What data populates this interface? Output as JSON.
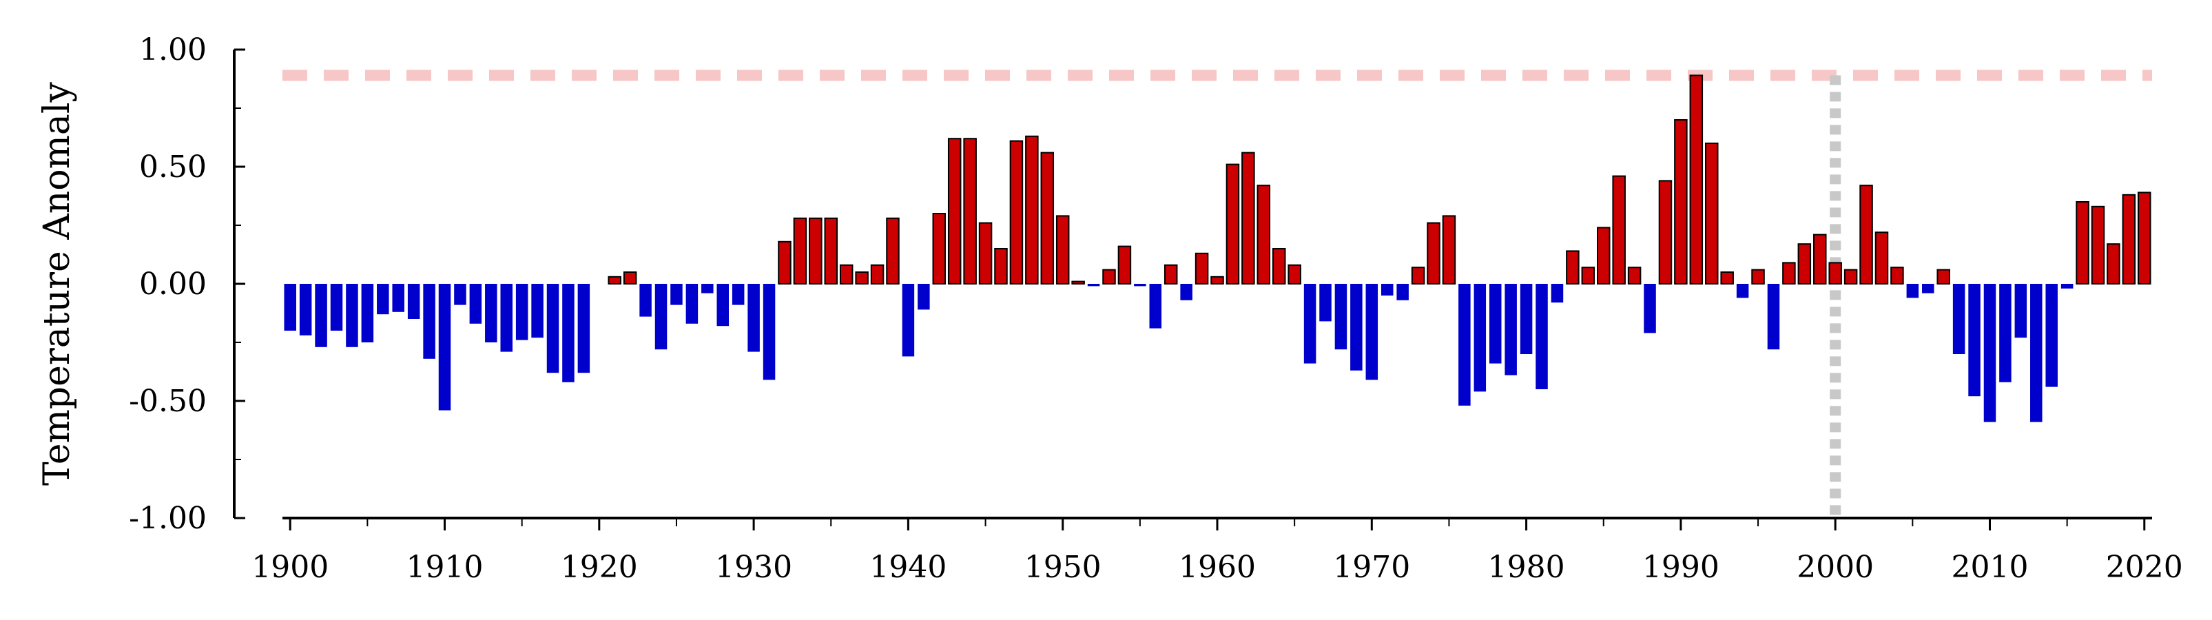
{
  "chart_data": {
    "type": "bar",
    "title": "",
    "xlabel": "",
    "ylabel": "Temperature Anomaly",
    "x_ticks": [
      1900,
      1910,
      1920,
      1930,
      1940,
      1950,
      1960,
      1970,
      1980,
      1990,
      2000,
      2010,
      2020
    ],
    "y_ticks": [
      "1.00",
      "0.50",
      "0.00",
      "-0.50",
      "-1.00"
    ],
    "xlim": [
      1899.5,
      2020.5
    ],
    "ylim": [
      -1.0,
      1.0
    ],
    "grid": false,
    "legend": "none",
    "colors": {
      "positive": "#cc0000",
      "negative": "#0000cc",
      "reference_line": "#f7c6c6",
      "marker_line": "#c8c8c8"
    },
    "reference_line_y": 0.89,
    "marker_line_x": 2000,
    "years": [
      1900,
      1901,
      1902,
      1903,
      1904,
      1905,
      1906,
      1907,
      1908,
      1909,
      1910,
      1911,
      1912,
      1913,
      1914,
      1915,
      1916,
      1917,
      1918,
      1919,
      1920,
      1921,
      1922,
      1923,
      1924,
      1925,
      1926,
      1927,
      1928,
      1929,
      1930,
      1931,
      1932,
      1933,
      1934,
      1935,
      1936,
      1937,
      1938,
      1939,
      1940,
      1941,
      1942,
      1943,
      1944,
      1945,
      1946,
      1947,
      1948,
      1949,
      1950,
      1951,
      1952,
      1953,
      1954,
      1955,
      1956,
      1957,
      1958,
      1959,
      1960,
      1961,
      1962,
      1963,
      1964,
      1965,
      1966,
      1967,
      1968,
      1969,
      1970,
      1971,
      1972,
      1973,
      1974,
      1975,
      1976,
      1977,
      1978,
      1979,
      1980,
      1981,
      1982,
      1983,
      1984,
      1985,
      1986,
      1987,
      1988,
      1989,
      1990,
      1991,
      1992,
      1993,
      1994,
      1995,
      1996,
      1997,
      1998,
      1999,
      2000,
      2001,
      2002,
      2003,
      2004,
      2005,
      2006,
      2007,
      2008,
      2009,
      2010,
      2011,
      2012,
      2013,
      2014,
      2015,
      2016,
      2017,
      2018,
      2019,
      2020
    ],
    "values": [
      -0.2,
      -0.22,
      -0.27,
      -0.2,
      -0.27,
      -0.25,
      -0.13,
      -0.12,
      -0.15,
      -0.32,
      -0.54,
      -0.09,
      -0.17,
      -0.25,
      -0.29,
      -0.24,
      -0.23,
      -0.38,
      -0.42,
      -0.38,
      0.0,
      0.03,
      0.05,
      -0.14,
      -0.28,
      -0.09,
      -0.17,
      -0.04,
      -0.18,
      -0.09,
      -0.29,
      -0.41,
      0.18,
      0.28,
      0.28,
      0.28,
      0.08,
      0.05,
      0.08,
      0.28,
      -0.31,
      -0.11,
      0.3,
      0.62,
      0.62,
      0.26,
      0.15,
      0.61,
      0.63,
      0.56,
      0.29,
      0.01,
      -0.01,
      0.06,
      0.16,
      -0.01,
      -0.19,
      0.08,
      -0.07,
      0.13,
      0.03,
      0.51,
      0.56,
      0.42,
      0.15,
      0.08,
      -0.34,
      -0.16,
      -0.28,
      -0.37,
      -0.41,
      -0.05,
      -0.07,
      0.07,
      0.26,
      0.29,
      -0.52,
      -0.46,
      -0.34,
      -0.39,
      -0.3,
      -0.45,
      -0.08,
      0.14,
      0.07,
      0.24,
      0.46,
      0.07,
      -0.21,
      0.44,
      0.7,
      0.89,
      0.6,
      0.05,
      -0.06,
      0.06,
      -0.28,
      0.09,
      0.17,
      0.21,
      0.09,
      0.06,
      0.42,
      0.22,
      0.07,
      -0.06,
      -0.04,
      0.06,
      -0.3,
      -0.48,
      -0.59,
      -0.42,
      -0.23,
      -0.59,
      -0.44,
      -0.02,
      0.35,
      0.33,
      0.17,
      0.38,
      0.39
    ]
  }
}
